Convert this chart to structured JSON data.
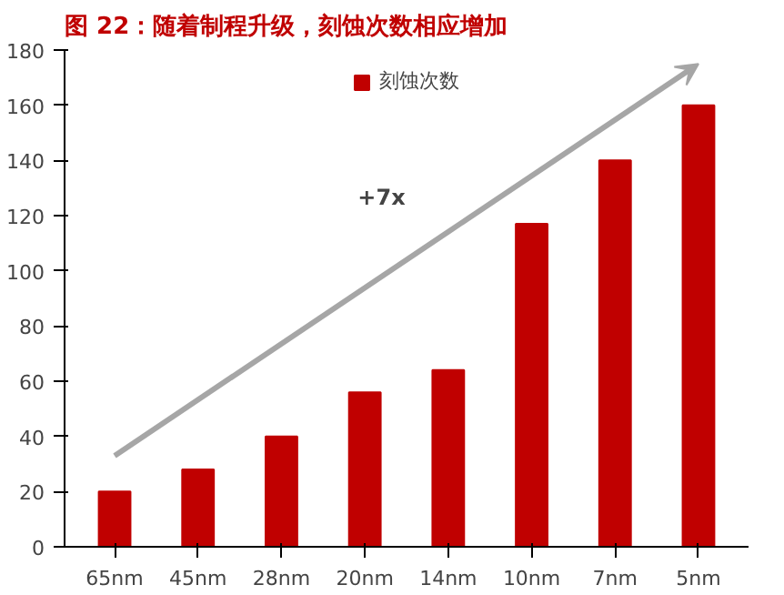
{
  "chart_data": {
    "type": "bar",
    "title": "图 22：随着制程升级，刻蚀次数相应增加",
    "categories": [
      "65nm",
      "45nm",
      "28nm",
      "20nm",
      "14nm",
      "10nm",
      "7nm",
      "5nm"
    ],
    "series": [
      {
        "name": "刻蚀次数",
        "color": "#c00000",
        "values": [
          20,
          28,
          40,
          56,
          64,
          117,
          140,
          160
        ]
      }
    ],
    "ylim": [
      0,
      180
    ],
    "yticks": [
      0,
      20,
      40,
      60,
      80,
      100,
      120,
      140,
      160,
      180
    ],
    "grid": false,
    "legend": "top",
    "annotations": [
      "+7x"
    ]
  }
}
